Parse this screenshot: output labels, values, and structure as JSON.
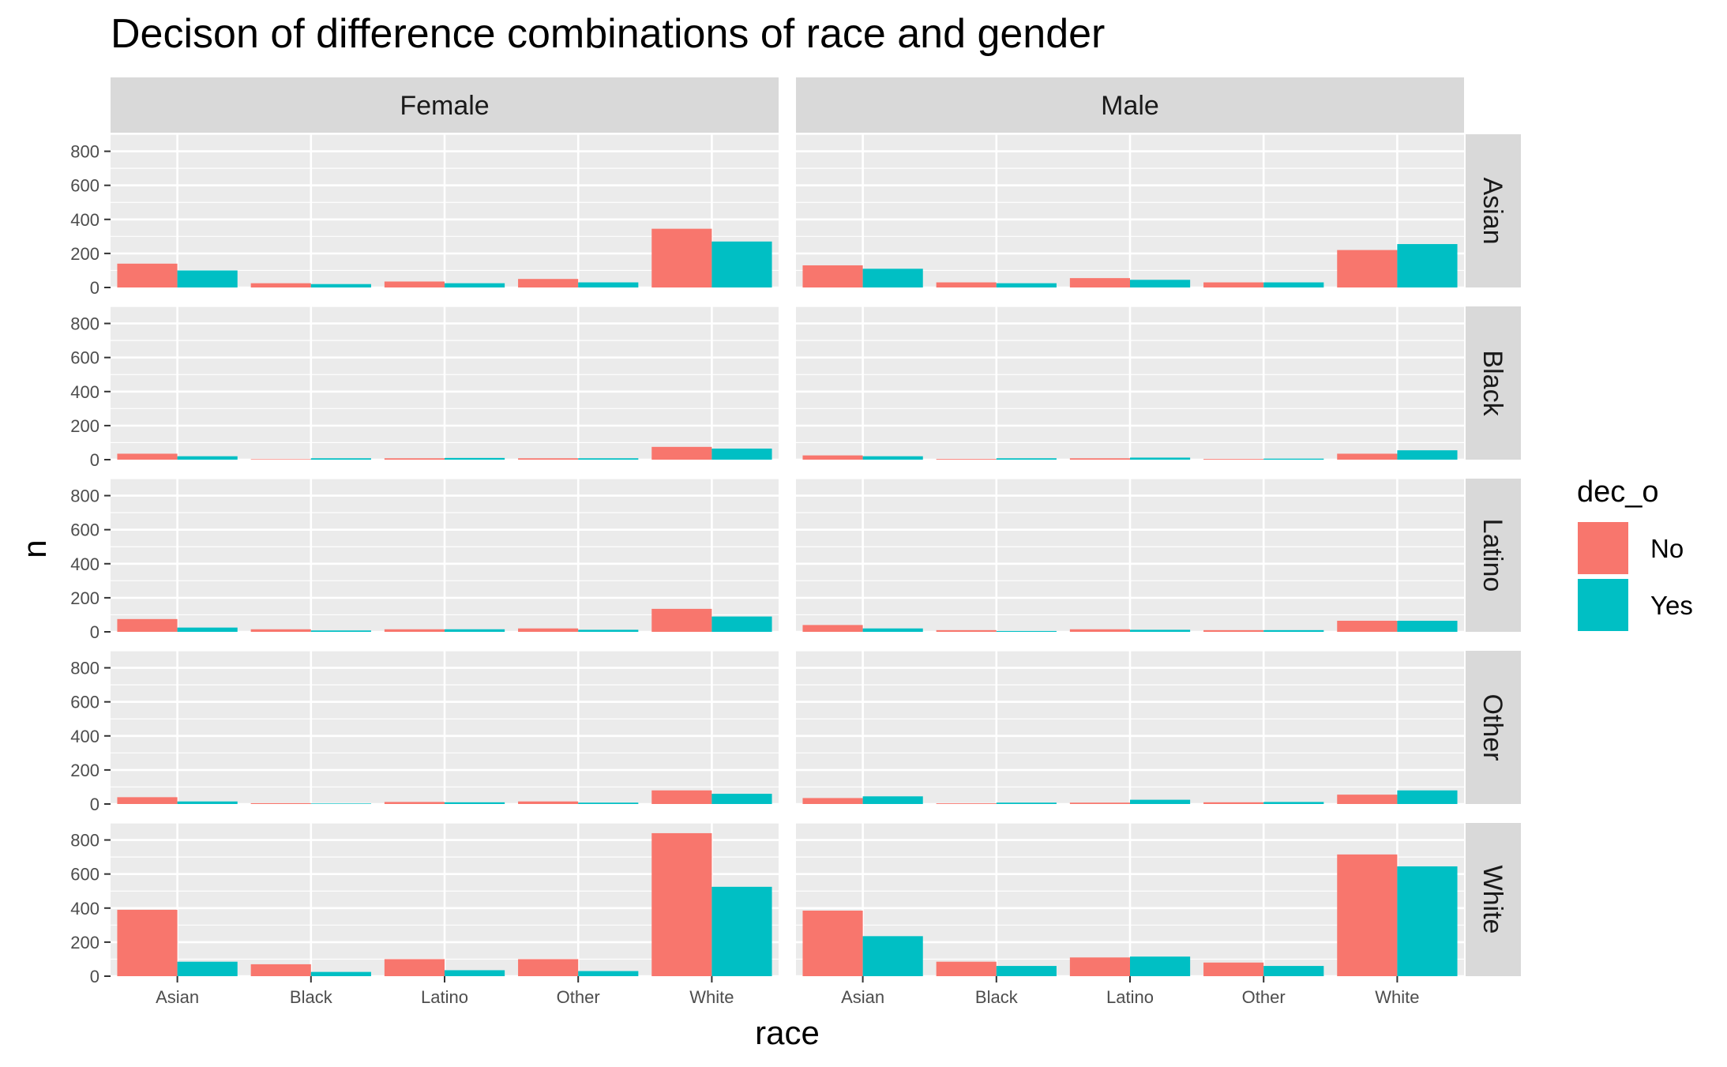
{
  "chart_data": {
    "type": "bar",
    "title": "Decison of difference combinations of race and gender",
    "xlabel": "race",
    "ylabel": "n",
    "facet_columns": [
      "Female",
      "Male"
    ],
    "facet_rows": [
      "Asian",
      "Black",
      "Latino",
      "Other",
      "White"
    ],
    "categories": [
      "Asian",
      "Black",
      "Latino",
      "Other",
      "White"
    ],
    "yticks": [
      0,
      200,
      400,
      600,
      800
    ],
    "ylim": [
      0,
      900
    ],
    "grid": true,
    "legend": {
      "title": "dec_o",
      "placement": "right",
      "entries": [
        {
          "name": "No",
          "color": "#F8766D"
        },
        {
          "name": "Yes",
          "color": "#00BFC4"
        }
      ]
    },
    "colors": {
      "No": "#F8766D",
      "Yes": "#00BFC4",
      "panel_background": "#EBEBEB",
      "strip_background": "#D9D9D9",
      "grid": "#FFFFFF"
    },
    "panels": [
      {
        "col": "Female",
        "row": "Asian",
        "series": [
          {
            "name": "No",
            "values": [
              140,
              25,
              35,
              50,
              345
            ]
          },
          {
            "name": "Yes",
            "values": [
              100,
              20,
              25,
              30,
              270
            ]
          }
        ]
      },
      {
        "col": "Male",
        "row": "Asian",
        "series": [
          {
            "name": "No",
            "values": [
              130,
              30,
              55,
              30,
              220
            ]
          },
          {
            "name": "Yes",
            "values": [
              110,
              25,
              45,
              30,
              255
            ]
          }
        ]
      },
      {
        "col": "Female",
        "row": "Black",
        "series": [
          {
            "name": "No",
            "values": [
              35,
              3,
              8,
              8,
              75
            ]
          },
          {
            "name": "Yes",
            "values": [
              20,
              8,
              10,
              8,
              65
            ]
          }
        ]
      },
      {
        "col": "Male",
        "row": "Black",
        "series": [
          {
            "name": "No",
            "values": [
              25,
              4,
              8,
              4,
              35
            ]
          },
          {
            "name": "Yes",
            "values": [
              20,
              8,
              12,
              6,
              55
            ]
          }
        ]
      },
      {
        "col": "Female",
        "row": "Latino",
        "series": [
          {
            "name": "No",
            "values": [
              75,
              15,
              15,
              20,
              135
            ]
          },
          {
            "name": "Yes",
            "values": [
              25,
              8,
              15,
              12,
              90
            ]
          }
        ]
      },
      {
        "col": "Male",
        "row": "Latino",
        "series": [
          {
            "name": "No",
            "values": [
              40,
              10,
              15,
              10,
              65
            ]
          },
          {
            "name": "Yes",
            "values": [
              20,
              5,
              12,
              10,
              65
            ]
          }
        ]
      },
      {
        "col": "Female",
        "row": "Other",
        "series": [
          {
            "name": "No",
            "values": [
              40,
              5,
              12,
              15,
              80
            ]
          },
          {
            "name": "Yes",
            "values": [
              15,
              3,
              10,
              8,
              60
            ]
          }
        ]
      },
      {
        "col": "Male",
        "row": "Other",
        "series": [
          {
            "name": "No",
            "values": [
              35,
              4,
              8,
              10,
              55
            ]
          },
          {
            "name": "Yes",
            "values": [
              45,
              8,
              25,
              12,
              80
            ]
          }
        ]
      },
      {
        "col": "Female",
        "row": "White",
        "series": [
          {
            "name": "No",
            "values": [
              390,
              70,
              100,
              100,
              840
            ]
          },
          {
            "name": "Yes",
            "values": [
              85,
              25,
              35,
              30,
              525
            ]
          }
        ]
      },
      {
        "col": "Male",
        "row": "White",
        "series": [
          {
            "name": "No",
            "values": [
              385,
              85,
              110,
              80,
              715
            ]
          },
          {
            "name": "Yes",
            "values": [
              235,
              60,
              115,
              60,
              645
            ]
          }
        ]
      }
    ]
  }
}
